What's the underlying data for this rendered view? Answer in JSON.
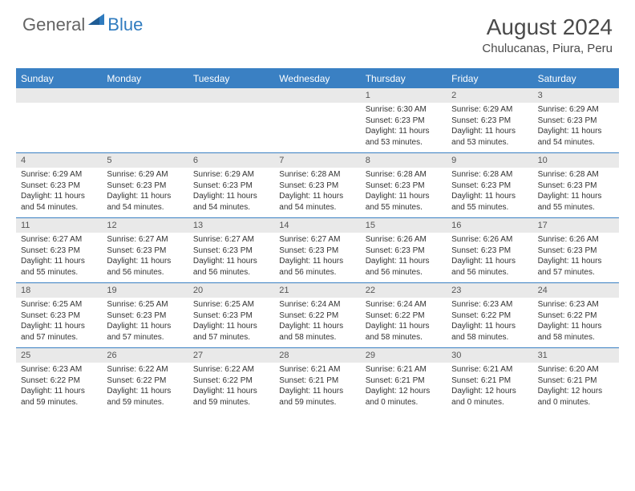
{
  "logo": {
    "general": "General",
    "blue": "Blue"
  },
  "header": {
    "month_title": "August 2024",
    "location": "Chulucanas, Piura, Peru"
  },
  "colors": {
    "brand_blue": "#3a80c3",
    "logo_gray": "#646464",
    "logo_blue": "#2f7bbf",
    "band_gray": "#e9e9e9",
    "text": "#333333"
  },
  "days_of_week": [
    "Sunday",
    "Monday",
    "Tuesday",
    "Wednesday",
    "Thursday",
    "Friday",
    "Saturday"
  ],
  "weeks": [
    [
      null,
      null,
      null,
      null,
      {
        "n": "1",
        "sunrise": "Sunrise: 6:30 AM",
        "sunset": "Sunset: 6:23 PM",
        "daylight": "Daylight: 11 hours and 53 minutes."
      },
      {
        "n": "2",
        "sunrise": "Sunrise: 6:29 AM",
        "sunset": "Sunset: 6:23 PM",
        "daylight": "Daylight: 11 hours and 53 minutes."
      },
      {
        "n": "3",
        "sunrise": "Sunrise: 6:29 AM",
        "sunset": "Sunset: 6:23 PM",
        "daylight": "Daylight: 11 hours and 54 minutes."
      }
    ],
    [
      {
        "n": "4",
        "sunrise": "Sunrise: 6:29 AM",
        "sunset": "Sunset: 6:23 PM",
        "daylight": "Daylight: 11 hours and 54 minutes."
      },
      {
        "n": "5",
        "sunrise": "Sunrise: 6:29 AM",
        "sunset": "Sunset: 6:23 PM",
        "daylight": "Daylight: 11 hours and 54 minutes."
      },
      {
        "n": "6",
        "sunrise": "Sunrise: 6:29 AM",
        "sunset": "Sunset: 6:23 PM",
        "daylight": "Daylight: 11 hours and 54 minutes."
      },
      {
        "n": "7",
        "sunrise": "Sunrise: 6:28 AM",
        "sunset": "Sunset: 6:23 PM",
        "daylight": "Daylight: 11 hours and 54 minutes."
      },
      {
        "n": "8",
        "sunrise": "Sunrise: 6:28 AM",
        "sunset": "Sunset: 6:23 PM",
        "daylight": "Daylight: 11 hours and 55 minutes."
      },
      {
        "n": "9",
        "sunrise": "Sunrise: 6:28 AM",
        "sunset": "Sunset: 6:23 PM",
        "daylight": "Daylight: 11 hours and 55 minutes."
      },
      {
        "n": "10",
        "sunrise": "Sunrise: 6:28 AM",
        "sunset": "Sunset: 6:23 PM",
        "daylight": "Daylight: 11 hours and 55 minutes."
      }
    ],
    [
      {
        "n": "11",
        "sunrise": "Sunrise: 6:27 AM",
        "sunset": "Sunset: 6:23 PM",
        "daylight": "Daylight: 11 hours and 55 minutes."
      },
      {
        "n": "12",
        "sunrise": "Sunrise: 6:27 AM",
        "sunset": "Sunset: 6:23 PM",
        "daylight": "Daylight: 11 hours and 56 minutes."
      },
      {
        "n": "13",
        "sunrise": "Sunrise: 6:27 AM",
        "sunset": "Sunset: 6:23 PM",
        "daylight": "Daylight: 11 hours and 56 minutes."
      },
      {
        "n": "14",
        "sunrise": "Sunrise: 6:27 AM",
        "sunset": "Sunset: 6:23 PM",
        "daylight": "Daylight: 11 hours and 56 minutes."
      },
      {
        "n": "15",
        "sunrise": "Sunrise: 6:26 AM",
        "sunset": "Sunset: 6:23 PM",
        "daylight": "Daylight: 11 hours and 56 minutes."
      },
      {
        "n": "16",
        "sunrise": "Sunrise: 6:26 AM",
        "sunset": "Sunset: 6:23 PM",
        "daylight": "Daylight: 11 hours and 56 minutes."
      },
      {
        "n": "17",
        "sunrise": "Sunrise: 6:26 AM",
        "sunset": "Sunset: 6:23 PM",
        "daylight": "Daylight: 11 hours and 57 minutes."
      }
    ],
    [
      {
        "n": "18",
        "sunrise": "Sunrise: 6:25 AM",
        "sunset": "Sunset: 6:23 PM",
        "daylight": "Daylight: 11 hours and 57 minutes."
      },
      {
        "n": "19",
        "sunrise": "Sunrise: 6:25 AM",
        "sunset": "Sunset: 6:23 PM",
        "daylight": "Daylight: 11 hours and 57 minutes."
      },
      {
        "n": "20",
        "sunrise": "Sunrise: 6:25 AM",
        "sunset": "Sunset: 6:23 PM",
        "daylight": "Daylight: 11 hours and 57 minutes."
      },
      {
        "n": "21",
        "sunrise": "Sunrise: 6:24 AM",
        "sunset": "Sunset: 6:22 PM",
        "daylight": "Daylight: 11 hours and 58 minutes."
      },
      {
        "n": "22",
        "sunrise": "Sunrise: 6:24 AM",
        "sunset": "Sunset: 6:22 PM",
        "daylight": "Daylight: 11 hours and 58 minutes."
      },
      {
        "n": "23",
        "sunrise": "Sunrise: 6:23 AM",
        "sunset": "Sunset: 6:22 PM",
        "daylight": "Daylight: 11 hours and 58 minutes."
      },
      {
        "n": "24",
        "sunrise": "Sunrise: 6:23 AM",
        "sunset": "Sunset: 6:22 PM",
        "daylight": "Daylight: 11 hours and 58 minutes."
      }
    ],
    [
      {
        "n": "25",
        "sunrise": "Sunrise: 6:23 AM",
        "sunset": "Sunset: 6:22 PM",
        "daylight": "Daylight: 11 hours and 59 minutes."
      },
      {
        "n": "26",
        "sunrise": "Sunrise: 6:22 AM",
        "sunset": "Sunset: 6:22 PM",
        "daylight": "Daylight: 11 hours and 59 minutes."
      },
      {
        "n": "27",
        "sunrise": "Sunrise: 6:22 AM",
        "sunset": "Sunset: 6:22 PM",
        "daylight": "Daylight: 11 hours and 59 minutes."
      },
      {
        "n": "28",
        "sunrise": "Sunrise: 6:21 AM",
        "sunset": "Sunset: 6:21 PM",
        "daylight": "Daylight: 11 hours and 59 minutes."
      },
      {
        "n": "29",
        "sunrise": "Sunrise: 6:21 AM",
        "sunset": "Sunset: 6:21 PM",
        "daylight": "Daylight: 12 hours and 0 minutes."
      },
      {
        "n": "30",
        "sunrise": "Sunrise: 6:21 AM",
        "sunset": "Sunset: 6:21 PM",
        "daylight": "Daylight: 12 hours and 0 minutes."
      },
      {
        "n": "31",
        "sunrise": "Sunrise: 6:20 AM",
        "sunset": "Sunset: 6:21 PM",
        "daylight": "Daylight: 12 hours and 0 minutes."
      }
    ]
  ]
}
